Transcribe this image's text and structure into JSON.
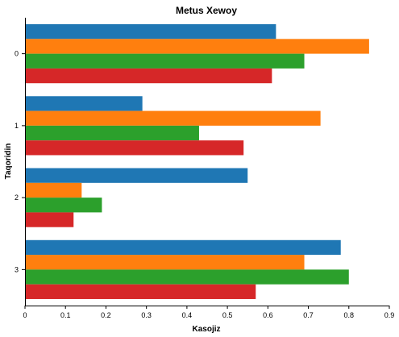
{
  "chart_data": {
    "type": "bar",
    "orientation": "horizontal",
    "title": "Metus Xewoy",
    "xlabel": "Kasojiz",
    "ylabel": "Taqoridin",
    "categories": [
      "0",
      "1",
      "2",
      "3"
    ],
    "xlim": [
      0,
      0.9
    ],
    "xticks": [
      "0",
      "0.1",
      "0.2",
      "0.3",
      "0.4",
      "0.5",
      "0.6",
      "0.7",
      "0.8",
      "0.9"
    ],
    "grid": false,
    "legend": "none",
    "series": [
      {
        "values": [
          0.62,
          0.29,
          0.55,
          0.78
        ],
        "color": "#1f77b4"
      },
      {
        "values": [
          0.85,
          0.73,
          0.14,
          0.69
        ],
        "color": "#ff7f0e"
      },
      {
        "values": [
          0.69,
          0.43,
          0.19,
          0.8
        ],
        "color": "#2ca02c"
      },
      {
        "values": [
          0.61,
          0.54,
          0.12,
          0.57
        ],
        "color": "#d62728"
      }
    ]
  }
}
